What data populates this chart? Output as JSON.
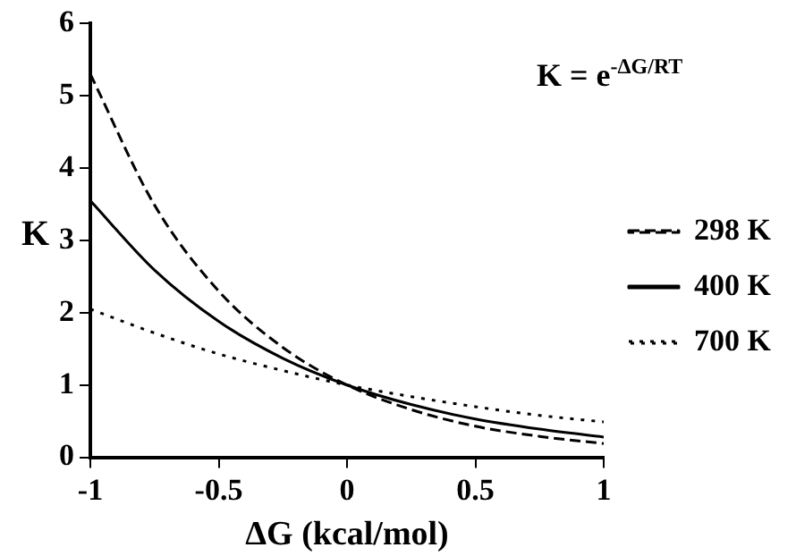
{
  "chart_data": {
    "type": "line",
    "xlabel": "ΔG (kcal/mol)",
    "ylabel": "K",
    "annotations": [
      "K = e$^{-ΔG/RT}$"
    ],
    "x": [
      -1,
      -0.75,
      -0.5,
      -0.25,
      0,
      0.25,
      0.5,
      0.75,
      1
    ],
    "series": [
      {
        "name": "298 K",
        "color": "#000000",
        "line_style": "dashed",
        "values": [
          5.3,
          3.49,
          2.3,
          1.52,
          1,
          0.66,
          0.43,
          0.29,
          0.19
        ]
      },
      {
        "name": "400 K",
        "color": "#000000",
        "line_style": "solid",
        "values": [
          3.55,
          2.59,
          1.88,
          1.37,
          1,
          0.73,
          0.53,
          0.39,
          0.28
        ]
      },
      {
        "name": "700 K",
        "color": "#000000",
        "line_style": "dotted",
        "values": [
          2.05,
          1.72,
          1.43,
          1.2,
          1,
          0.84,
          0.7,
          0.58,
          0.49
        ]
      }
    ],
    "xlim": [
      -1,
      1
    ],
    "xticks": [
      -1,
      -0.5,
      0,
      0.5,
      1
    ],
    "ylim": [
      0,
      6
    ],
    "yticks": [
      0,
      1,
      2,
      3,
      4,
      5,
      6
    ],
    "grid": false,
    "legend": "right",
    "marker": "none"
  }
}
